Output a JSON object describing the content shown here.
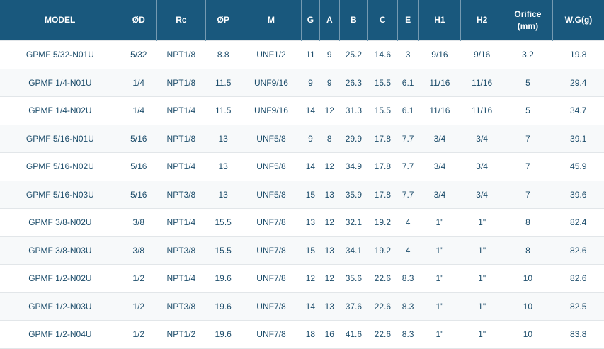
{
  "colors": {
    "header_bg": "#19587d",
    "header_text": "#ffffff",
    "body_text": "#1d4d6b",
    "row_alt_bg": "#f7f9fa",
    "row_divider": "#e2e6e9"
  },
  "table": {
    "columns": [
      "MODEL",
      "ØD",
      "Rc",
      "ØP",
      "M",
      "G",
      "A",
      "B",
      "C",
      "E",
      "H1",
      "H2",
      "Orifice\n(mm)",
      "W.G(g)"
    ],
    "rows": [
      [
        "GPMF 5/32-N01U",
        "5/32",
        "NPT1/8",
        "8.8",
        "UNF1/2",
        "11",
        "9",
        "25.2",
        "14.6",
        "3",
        "9/16",
        "9/16",
        "3.2",
        "19.8"
      ],
      [
        "GPMF 1/4-N01U",
        "1/4",
        "NPT1/8",
        "11.5",
        "UNF9/16",
        "9",
        "9",
        "26.3",
        "15.5",
        "6.1",
        "11/16",
        "11/16",
        "5",
        "29.4"
      ],
      [
        "GPMF 1/4-N02U",
        "1/4",
        "NPT1/4",
        "11.5",
        "UNF9/16",
        "14",
        "12",
        "31.3",
        "15.5",
        "6.1",
        "11/16",
        "11/16",
        "5",
        "34.7"
      ],
      [
        "GPMF 5/16-N01U",
        "5/16",
        "NPT1/8",
        "13",
        "UNF5/8",
        "9",
        "8",
        "29.9",
        "17.8",
        "7.7",
        "3/4",
        "3/4",
        "7",
        "39.1"
      ],
      [
        "GPMF 5/16-N02U",
        "5/16",
        "NPT1/4",
        "13",
        "UNF5/8",
        "14",
        "12",
        "34.9",
        "17.8",
        "7.7",
        "3/4",
        "3/4",
        "7",
        "45.9"
      ],
      [
        "GPMF 5/16-N03U",
        "5/16",
        "NPT3/8",
        "13",
        "UNF5/8",
        "15",
        "13",
        "35.9",
        "17.8",
        "7.7",
        "3/4",
        "3/4",
        "7",
        "39.6"
      ],
      [
        "GPMF 3/8-N02U",
        "3/8",
        "NPT1/4",
        "15.5",
        "UNF7/8",
        "13",
        "12",
        "32.1",
        "19.2",
        "4",
        "1\"",
        "1\"",
        "8",
        "82.4"
      ],
      [
        "GPMF 3/8-N03U",
        "3/8",
        "NPT3/8",
        "15.5",
        "UNF7/8",
        "15",
        "13",
        "34.1",
        "19.2",
        "4",
        "1\"",
        "1\"",
        "8",
        "82.6"
      ],
      [
        "GPMF 1/2-N02U",
        "1/2",
        "NPT1/4",
        "19.6",
        "UNF7/8",
        "12",
        "12",
        "35.6",
        "22.6",
        "8.3",
        "1\"",
        "1\"",
        "10",
        "82.6"
      ],
      [
        "GPMF 1/2-N03U",
        "1/2",
        "NPT3/8",
        "19.6",
        "UNF7/8",
        "14",
        "13",
        "37.6",
        "22.6",
        "8.3",
        "1\"",
        "1\"",
        "10",
        "82.5"
      ],
      [
        "GPMF 1/2-N04U",
        "1/2",
        "NPT1/2",
        "19.6",
        "UNF7/8",
        "18",
        "16",
        "41.6",
        "22.6",
        "8.3",
        "1\"",
        "1\"",
        "10",
        "83.8"
      ]
    ]
  }
}
